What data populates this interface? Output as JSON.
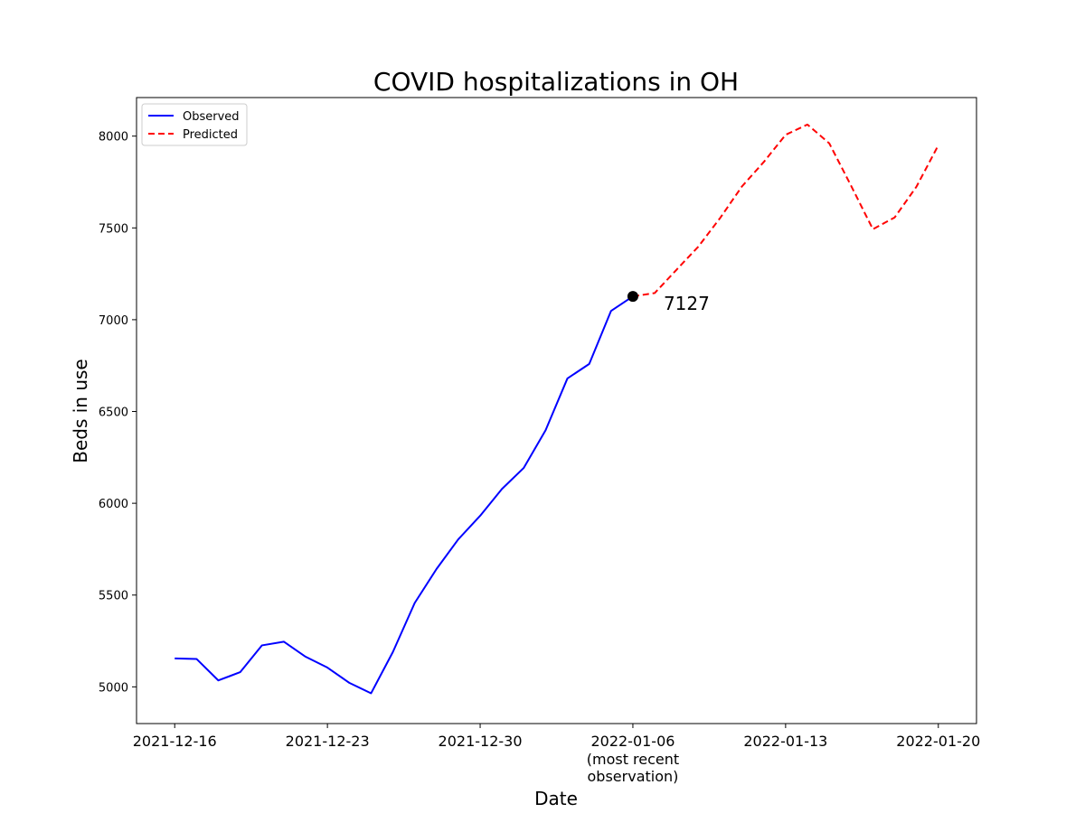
{
  "chart_data": {
    "type": "line",
    "title": "COVID hospitalizations in OH",
    "xlabel": "Date",
    "ylabel": "Beds in use",
    "ylim": [
      4800,
      8210
    ],
    "xlim": [
      "2021-12-14T06:00",
      "2022-01-21T18:00"
    ],
    "yticks": [
      5000,
      5500,
      6000,
      6500,
      7000,
      7500,
      8000
    ],
    "xticks": [
      {
        "date": "2021-12-16",
        "label": "2021-12-16",
        "sublabel": ""
      },
      {
        "date": "2021-12-23",
        "label": "2021-12-23",
        "sublabel": ""
      },
      {
        "date": "2021-12-30",
        "label": "2021-12-30",
        "sublabel": ""
      },
      {
        "date": "2022-01-06",
        "label": "2022-01-06",
        "sublabel": "(most recent\nobservation)"
      },
      {
        "date": "2022-01-13",
        "label": "2022-01-13",
        "sublabel": ""
      },
      {
        "date": "2022-01-20",
        "label": "2022-01-20",
        "sublabel": ""
      }
    ],
    "grid": false,
    "legend": "top-left",
    "series": [
      {
        "name": "Observed",
        "color": "#0000ff",
        "style": "solid",
        "x": [
          "2021-12-16",
          "2021-12-17",
          "2021-12-18",
          "2021-12-19",
          "2021-12-20",
          "2021-12-21",
          "2021-12-22",
          "2021-12-23",
          "2021-12-24",
          "2021-12-25",
          "2021-12-26",
          "2021-12-27",
          "2021-12-28",
          "2021-12-29",
          "2021-12-30",
          "2021-12-31",
          "2022-01-01",
          "2022-01-02",
          "2022-01-03",
          "2022-01-04",
          "2022-01-05",
          "2022-01-06"
        ],
        "y": [
          5155,
          5152,
          5035,
          5080,
          5226,
          5246,
          5164,
          5105,
          5022,
          4965,
          5190,
          5457,
          5642,
          5804,
          5932,
          6078,
          6193,
          6398,
          6680,
          6759,
          7048,
          7127
        ]
      },
      {
        "name": "Predicted",
        "color": "#ff0000",
        "style": "dashed",
        "x": [
          "2022-01-06",
          "2022-01-07",
          "2022-01-08",
          "2022-01-09",
          "2022-01-10",
          "2022-01-11",
          "2022-01-12",
          "2022-01-13",
          "2022-01-14",
          "2022-01-15",
          "2022-01-16",
          "2022-01-17",
          "2022-01-18",
          "2022-01-19",
          "2022-01-20"
        ],
        "y": [
          7127,
          7145,
          7272,
          7398,
          7554,
          7726,
          7859,
          8007,
          8063,
          7961,
          7730,
          7493,
          7557,
          7725,
          7950
        ]
      }
    ],
    "annotation": {
      "date": "2022-01-06",
      "value": 7127,
      "text": "7127",
      "marker_color": "#000000"
    }
  }
}
